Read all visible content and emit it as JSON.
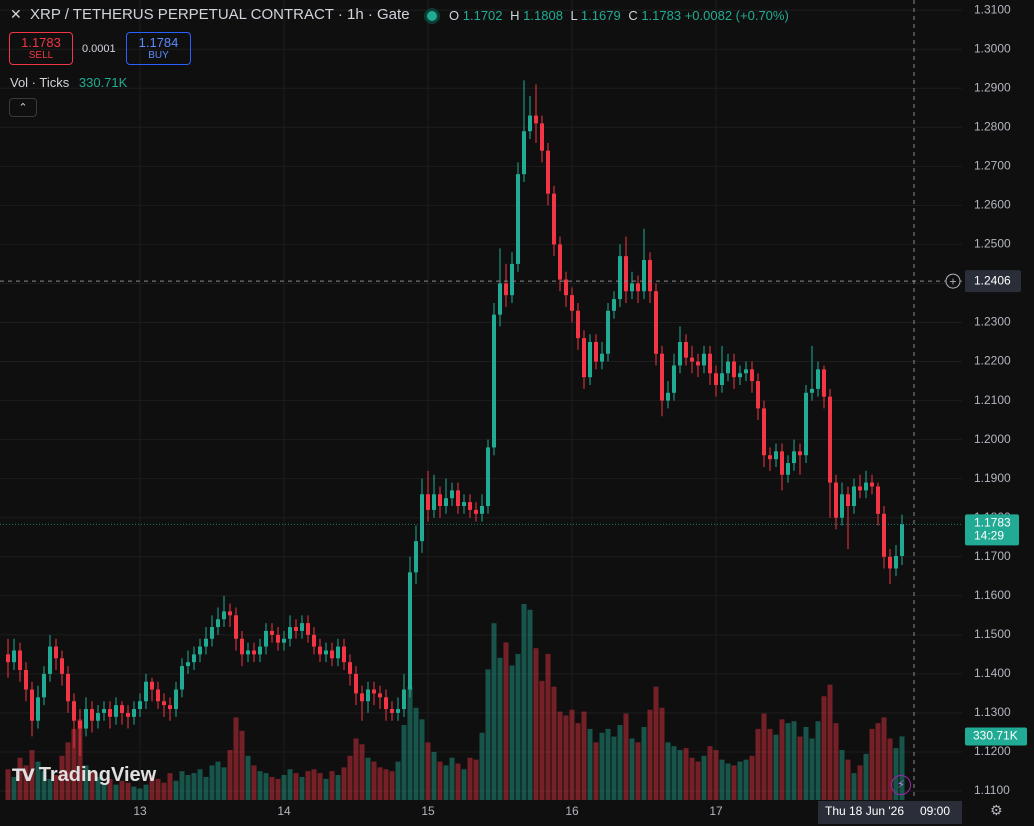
{
  "chart_data": {
    "type": "candlestick",
    "title": "XRP / TETHERUS PERPETUAL CONTRACT · 1h · Gate",
    "ohlc_legend": {
      "o": "O",
      "h": "H",
      "l": "L",
      "c": "C",
      "change": "+0.0082 (+0.70%)"
    },
    "trade": {
      "sell_price": 1.1783,
      "sell": "SELL",
      "spread": 0.0001,
      "buy_price": 1.1784,
      "buy": "BUY"
    },
    "up_color": "#22ab94",
    "down_color": "#f23645",
    "grid": true,
    "ylim": [
      1.1077,
      1.3126
    ],
    "yticks": [
      {
        "value": 1.31,
        "label": "1.3100"
      },
      {
        "value": 1.3,
        "label": "1.3000"
      },
      {
        "value": 1.29,
        "label": "1.2900"
      },
      {
        "value": 1.28,
        "label": "1.2800"
      },
      {
        "value": 1.27,
        "label": "1.2700"
      },
      {
        "value": 1.26,
        "label": "1.2600"
      },
      {
        "value": 1.25,
        "label": "1.2500"
      },
      {
        "value": 1.24,
        "label": "1.2400"
      },
      {
        "value": 1.23,
        "label": "1.2300"
      },
      {
        "value": 1.22,
        "label": "1.2200"
      },
      {
        "value": 1.21,
        "label": "1.2100"
      },
      {
        "value": 1.2,
        "label": "1.2000"
      },
      {
        "value": 1.19,
        "label": "1.1900"
      },
      {
        "value": 1.18,
        "label": "1.1800"
      },
      {
        "value": 1.17,
        "label": "1.1700"
      },
      {
        "value": 1.16,
        "label": "1.1600"
      },
      {
        "value": 1.15,
        "label": "1.1500"
      },
      {
        "value": 1.14,
        "label": "1.1400"
      },
      {
        "value": 1.13,
        "label": "1.1300"
      },
      {
        "value": 1.12,
        "label": "1.1200"
      },
      {
        "value": 1.11,
        "label": "1.1100"
      }
    ],
    "categories": [
      null,
      null,
      null,
      null,
      null,
      null,
      null,
      null,
      null,
      null,
      null,
      null,
      null,
      null,
      null,
      null,
      null,
      null,
      null,
      null,
      null,
      null,
      "13",
      null,
      null,
      null,
      null,
      null,
      null,
      null,
      null,
      null,
      null,
      null,
      null,
      null,
      null,
      null,
      null,
      null,
      null,
      null,
      null,
      null,
      null,
      null,
      "14",
      null,
      null,
      null,
      null,
      null,
      null,
      null,
      null,
      null,
      null,
      null,
      null,
      null,
      null,
      null,
      null,
      null,
      null,
      null,
      null,
      null,
      null,
      null,
      "15",
      null,
      null,
      null,
      null,
      null,
      null,
      null,
      null,
      null,
      null,
      null,
      null,
      null,
      null,
      null,
      null,
      null,
      null,
      null,
      null,
      null,
      null,
      null,
      "16",
      null,
      null,
      null,
      null,
      null,
      null,
      null,
      null,
      null,
      null,
      null,
      null,
      null,
      null,
      null,
      null,
      null,
      null,
      null,
      null,
      null,
      null,
      null,
      "17",
      null,
      null,
      null,
      null,
      null,
      null,
      null,
      null,
      null,
      null,
      null,
      null,
      null,
      null,
      null,
      null,
      null,
      null,
      null,
      null,
      null,
      null,
      null,
      null,
      null,
      null,
      null,
      null,
      null,
      null,
      null
    ],
    "open": [
      1.145,
      1.143,
      1.146,
      1.141,
      1.136,
      1.128,
      1.134,
      1.14,
      1.147,
      1.144,
      1.14,
      1.133,
      1.128,
      1.126,
      1.131,
      1.128,
      1.13,
      1.131,
      1.129,
      1.132,
      1.13,
      1.129,
      1.131,
      1.133,
      1.138,
      1.136,
      1.133,
      1.132,
      1.131,
      1.136,
      1.142,
      1.143,
      1.145,
      1.147,
      1.149,
      1.152,
      1.154,
      1.156,
      1.155,
      1.149,
      1.145,
      1.146,
      1.145,
      1.147,
      1.151,
      1.15,
      1.148,
      1.149,
      1.152,
      1.151,
      1.153,
      1.15,
      1.147,
      1.145,
      1.146,
      1.144,
      1.147,
      1.143,
      1.14,
      1.135,
      1.133,
      1.136,
      1.135,
      1.134,
      1.131,
      1.13,
      1.131,
      1.136,
      1.166,
      1.174,
      1.186,
      1.182,
      1.186,
      1.183,
      1.185,
      1.187,
      1.183,
      1.184,
      1.182,
      1.181,
      1.183,
      1.198,
      1.232,
      1.24,
      1.237,
      1.245,
      1.268,
      1.279,
      1.283,
      1.281,
      1.274,
      1.263,
      1.25,
      1.241,
      1.237,
      1.233,
      1.226,
      1.216,
      1.225,
      1.22,
      1.222,
      1.233,
      1.236,
      1.247,
      1.238,
      1.24,
      1.238,
      1.246,
      1.238,
      1.222,
      1.21,
      1.212,
      1.219,
      1.225,
      1.221,
      1.22,
      1.219,
      1.222,
      1.217,
      1.214,
      1.217,
      1.22,
      1.216,
      1.217,
      1.218,
      1.215,
      1.208,
      1.196,
      1.195,
      1.197,
      1.191,
      1.194,
      1.197,
      1.196,
      1.212,
      1.213,
      1.218,
      1.211,
      1.189,
      1.18,
      1.186,
      1.183,
      1.188,
      1.187,
      1.189,
      1.188,
      1.181,
      1.17,
      1.167,
      1.1702
    ],
    "high": [
      1.149,
      1.149,
      1.148,
      1.143,
      1.138,
      1.137,
      1.142,
      1.15,
      1.149,
      1.146,
      1.142,
      1.135,
      1.131,
      1.134,
      1.133,
      1.132,
      1.133,
      1.133,
      1.134,
      1.133,
      1.132,
      1.133,
      1.135,
      1.14,
      1.139,
      1.138,
      1.135,
      1.134,
      1.138,
      1.144,
      1.146,
      1.147,
      1.149,
      1.152,
      1.155,
      1.157,
      1.16,
      1.158,
      1.157,
      1.151,
      1.148,
      1.148,
      1.149,
      1.153,
      1.153,
      1.152,
      1.151,
      1.155,
      1.154,
      1.155,
      1.155,
      1.152,
      1.149,
      1.148,
      1.148,
      1.149,
      1.149,
      1.145,
      1.142,
      1.137,
      1.138,
      1.138,
      1.137,
      1.136,
      1.133,
      1.134,
      1.14,
      1.17,
      1.178,
      1.19,
      1.192,
      1.191,
      1.188,
      1.19,
      1.189,
      1.189,
      1.186,
      1.186,
      1.184,
      1.186,
      1.2,
      1.235,
      1.249,
      1.245,
      1.248,
      1.271,
      1.292,
      1.288,
      1.291,
      1.283,
      1.276,
      1.265,
      1.252,
      1.243,
      1.239,
      1.235,
      1.228,
      1.227,
      1.227,
      1.225,
      1.235,
      1.238,
      1.25,
      1.252,
      1.243,
      1.242,
      1.254,
      1.248,
      1.24,
      1.224,
      1.215,
      1.222,
      1.229,
      1.227,
      1.224,
      1.222,
      1.224,
      1.224,
      1.219,
      1.224,
      1.222,
      1.222,
      1.219,
      1.22,
      1.22,
      1.217,
      1.21,
      1.198,
      1.199,
      1.199,
      1.196,
      1.2,
      1.199,
      1.214,
      1.224,
      1.22,
      1.219,
      1.213,
      1.191,
      1.189,
      1.188,
      1.19,
      1.191,
      1.192,
      1.191,
      1.189,
      1.183,
      1.172,
      1.173,
      1.1808
    ],
    "low": [
      1.139,
      1.141,
      1.138,
      1.133,
      1.124,
      1.126,
      1.132,
      1.138,
      1.141,
      1.137,
      1.13,
      1.121,
      1.119,
      1.124,
      1.125,
      1.126,
      1.128,
      1.126,
      1.127,
      1.127,
      1.126,
      1.127,
      1.129,
      1.131,
      1.133,
      1.131,
      1.129,
      1.128,
      1.129,
      1.134,
      1.14,
      1.141,
      1.143,
      1.145,
      1.147,
      1.15,
      1.152,
      1.152,
      1.146,
      1.142,
      1.143,
      1.143,
      1.143,
      1.145,
      1.148,
      1.146,
      1.146,
      1.147,
      1.149,
      1.149,
      1.148,
      1.145,
      1.143,
      1.143,
      1.142,
      1.142,
      1.141,
      1.137,
      1.132,
      1.128,
      1.13,
      1.132,
      1.131,
      1.128,
      1.128,
      1.128,
      1.129,
      1.134,
      1.163,
      1.171,
      1.179,
      1.18,
      1.18,
      1.181,
      1.183,
      1.181,
      1.181,
      1.18,
      1.179,
      1.179,
      1.181,
      1.196,
      1.229,
      1.234,
      1.235,
      1.243,
      1.266,
      1.277,
      1.276,
      1.271,
      1.26,
      1.247,
      1.238,
      1.234,
      1.23,
      1.223,
      1.213,
      1.214,
      1.218,
      1.218,
      1.22,
      1.231,
      1.234,
      1.235,
      1.236,
      1.235,
      1.236,
      1.235,
      1.219,
      1.206,
      1.208,
      1.21,
      1.217,
      1.219,
      1.217,
      1.216,
      1.217,
      1.214,
      1.211,
      1.212,
      1.215,
      1.213,
      1.214,
      1.215,
      1.212,
      1.205,
      1.193,
      1.192,
      1.193,
      1.187,
      1.189,
      1.192,
      1.191,
      1.194,
      1.21,
      1.211,
      1.208,
      1.18,
      1.177,
      1.178,
      1.172,
      1.181,
      1.185,
      1.185,
      1.186,
      1.178,
      1.167,
      1.163,
      1.165,
      1.1679
    ],
    "close": [
      1.143,
      1.146,
      1.141,
      1.136,
      1.128,
      1.134,
      1.14,
      1.147,
      1.144,
      1.14,
      1.133,
      1.128,
      1.126,
      1.131,
      1.128,
      1.13,
      1.131,
      1.129,
      1.132,
      1.13,
      1.129,
      1.131,
      1.133,
      1.138,
      1.136,
      1.133,
      1.132,
      1.131,
      1.136,
      1.142,
      1.143,
      1.145,
      1.147,
      1.149,
      1.152,
      1.154,
      1.156,
      1.155,
      1.149,
      1.145,
      1.146,
      1.145,
      1.147,
      1.151,
      1.15,
      1.148,
      1.149,
      1.152,
      1.151,
      1.153,
      1.15,
      1.147,
      1.145,
      1.146,
      1.144,
      1.147,
      1.143,
      1.14,
      1.135,
      1.133,
      1.136,
      1.135,
      1.134,
      1.131,
      1.13,
      1.131,
      1.136,
      1.166,
      1.174,
      1.186,
      1.182,
      1.186,
      1.183,
      1.185,
      1.187,
      1.183,
      1.184,
      1.182,
      1.181,
      1.183,
      1.198,
      1.232,
      1.24,
      1.237,
      1.245,
      1.268,
      1.279,
      1.283,
      1.281,
      1.274,
      1.263,
      1.25,
      1.241,
      1.237,
      1.233,
      1.226,
      1.216,
      1.225,
      1.22,
      1.222,
      1.233,
      1.236,
      1.247,
      1.238,
      1.24,
      1.238,
      1.246,
      1.238,
      1.222,
      1.21,
      1.212,
      1.219,
      1.225,
      1.221,
      1.22,
      1.219,
      1.222,
      1.217,
      1.214,
      1.217,
      1.22,
      1.216,
      1.217,
      1.218,
      1.215,
      1.208,
      1.196,
      1.195,
      1.197,
      1.191,
      1.194,
      1.197,
      1.196,
      1.212,
      1.213,
      1.218,
      1.211,
      1.189,
      1.18,
      1.186,
      1.183,
      1.188,
      1.187,
      1.189,
      1.188,
      1.181,
      1.17,
      1.167,
      1.1702,
      1.1783
    ],
    "last_countdown": "14:29",
    "volume": {
      "name": "Vol · Ticks",
      "last_label": "330.71K",
      "values": [
        160000,
        120000,
        220000,
        180000,
        260000,
        200000,
        150000,
        110000,
        130000,
        230000,
        300000,
        370000,
        420000,
        180000,
        150000,
        120000,
        90000,
        110000,
        80000,
        100000,
        90000,
        70000,
        60000,
        80000,
        130000,
        110000,
        90000,
        140000,
        100000,
        150000,
        130000,
        140000,
        160000,
        120000,
        180000,
        200000,
        170000,
        260000,
        430000,
        360000,
        230000,
        180000,
        150000,
        140000,
        120000,
        110000,
        130000,
        160000,
        140000,
        120000,
        150000,
        160000,
        140000,
        110000,
        150000,
        130000,
        170000,
        230000,
        320000,
        290000,
        220000,
        200000,
        170000,
        160000,
        150000,
        200000,
        390000,
        590000,
        480000,
        420000,
        300000,
        250000,
        200000,
        180000,
        220000,
        190000,
        160000,
        220000,
        210000,
        350000,
        680000,
        920000,
        740000,
        820000,
        700000,
        760000,
        1020000,
        990000,
        790000,
        620000,
        760000,
        590000,
        460000,
        440000,
        470000,
        400000,
        460000,
        370000,
        300000,
        350000,
        370000,
        330000,
        390000,
        450000,
        320000,
        300000,
        380000,
        470000,
        590000,
        480000,
        300000,
        280000,
        260000,
        270000,
        220000,
        200000,
        230000,
        280000,
        260000,
        210000,
        190000,
        180000,
        200000,
        210000,
        230000,
        370000,
        450000,
        370000,
        340000,
        420000,
        400000,
        410000,
        330000,
        380000,
        320000,
        410000,
        540000,
        600000,
        400000,
        260000,
        210000,
        140000,
        180000,
        240000,
        370000,
        400000,
        430000,
        320000,
        270000,
        330710
      ]
    },
    "crosshair": {
      "price": 1.2406,
      "date_label": "Thu 18 Jun '26",
      "time_label": "09:00"
    },
    "watermark": "TradingView"
  }
}
